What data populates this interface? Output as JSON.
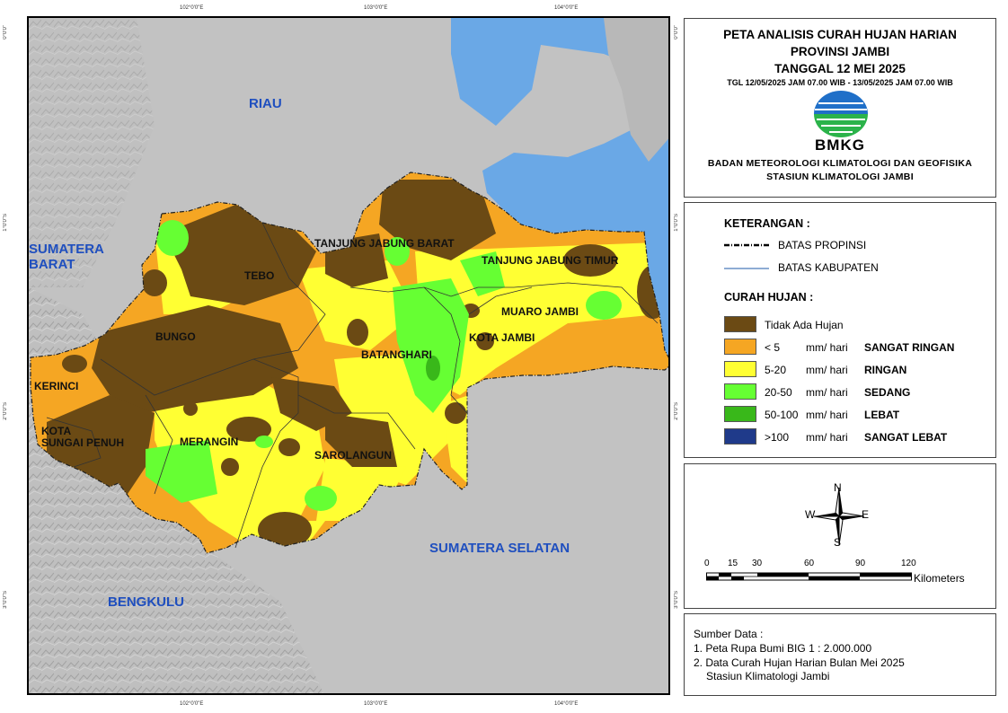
{
  "map": {
    "lon_ticks": [
      "102°0'0\"E",
      "103°0'0\"E",
      "104°0'0\"E"
    ],
    "lat_ticks": [
      "0°0'0\"",
      "1°0'0\"S",
      "2°0'0\"S",
      "3°0'0\"S"
    ],
    "neighbors": {
      "riau": "RIAU",
      "sumbar": "SUMATERA\nBARAT",
      "sumsel": "SUMATERA SELATAN",
      "bengkulu": "BENGKULU"
    },
    "kabupaten": {
      "tanjabbar": "TANJUNG JABUNG BARAT",
      "tanjabtim": "TANJUNG JABUNG TIMUR",
      "tebo": "TEBO",
      "muarojambi": "MUARO JAMBI",
      "bungo": "BUNGO",
      "kotajambi": "KOTA JAMBI",
      "batanghari": "BATANGHARI",
      "kerinci": "KERINCI",
      "sungaipenuh": "KOTA\nSUNGAI PENUH",
      "merangin": "MERANGIN",
      "sarolangun": "SAROLANGUN"
    },
    "colors": {
      "sea": "#6aa8e6",
      "terrain": "#bcbcbc",
      "no_rain": "#6b4a14",
      "very_light": "#f5a623",
      "light": "#ffff33",
      "moderate": "#66ff33",
      "heavy": "#39b81a",
      "very_heavy": "#1f3a8a"
    }
  },
  "title": {
    "line1": "PETA ANALISIS CURAH HUJAN HARIAN",
    "line2": "PROVINSI JAMBI",
    "line3": "TANGGAL 12 MEI 2025",
    "period": "TGL 12/05/2025 JAM 07.00 WIB - 13/05/2025 JAM 07.00 WIB",
    "logo_text": "BMKG",
    "org1": "BADAN METEOROLOGI KLIMATOLOGI DAN GEOFISIKA",
    "org2": "STASIUN KLIMATOLOGI JAMBI"
  },
  "legend": {
    "heading": "KETERANGAN :",
    "boundary_province": "BATAS PROPINSI",
    "boundary_kabupaten": "BATAS KABUPATEN",
    "rain_heading": "CURAH HUJAN :",
    "classes": [
      {
        "label": "Tidak Ada Hujan",
        "unit": "",
        "category": "",
        "color": "#6b4a14"
      },
      {
        "label": "< 5",
        "unit": "mm/ hari",
        "category": "SANGAT RINGAN",
        "color": "#f5a623"
      },
      {
        "label": "5-20",
        "unit": "mm/ hari",
        "category": "RINGAN",
        "color": "#ffff33"
      },
      {
        "label": "20-50",
        "unit": "mm/ hari",
        "category": "SEDANG",
        "color": "#66ff33"
      },
      {
        "label": "50-100",
        "unit": "mm/ hari",
        "category": "LEBAT",
        "color": "#39b81a"
      },
      {
        "label": ">100",
        "unit": "mm/ hari",
        "category": "SANGAT LEBAT",
        "color": "#1f3a8a"
      }
    ]
  },
  "compass": {
    "n": "N",
    "s": "S",
    "e": "E",
    "w": "W"
  },
  "scale": {
    "ticks": [
      "0",
      "15",
      "30",
      "60",
      "90",
      "120"
    ],
    "unit": "Kilometers"
  },
  "source": {
    "heading": "Sumber Data :",
    "line1": "1. Peta Rupa Bumi BIG 1 : 2.000.000",
    "line2": "2. Data Curah Hujan Harian Bulan Mei 2025",
    "line3": "Stasiun Klimatologi Jambi"
  }
}
